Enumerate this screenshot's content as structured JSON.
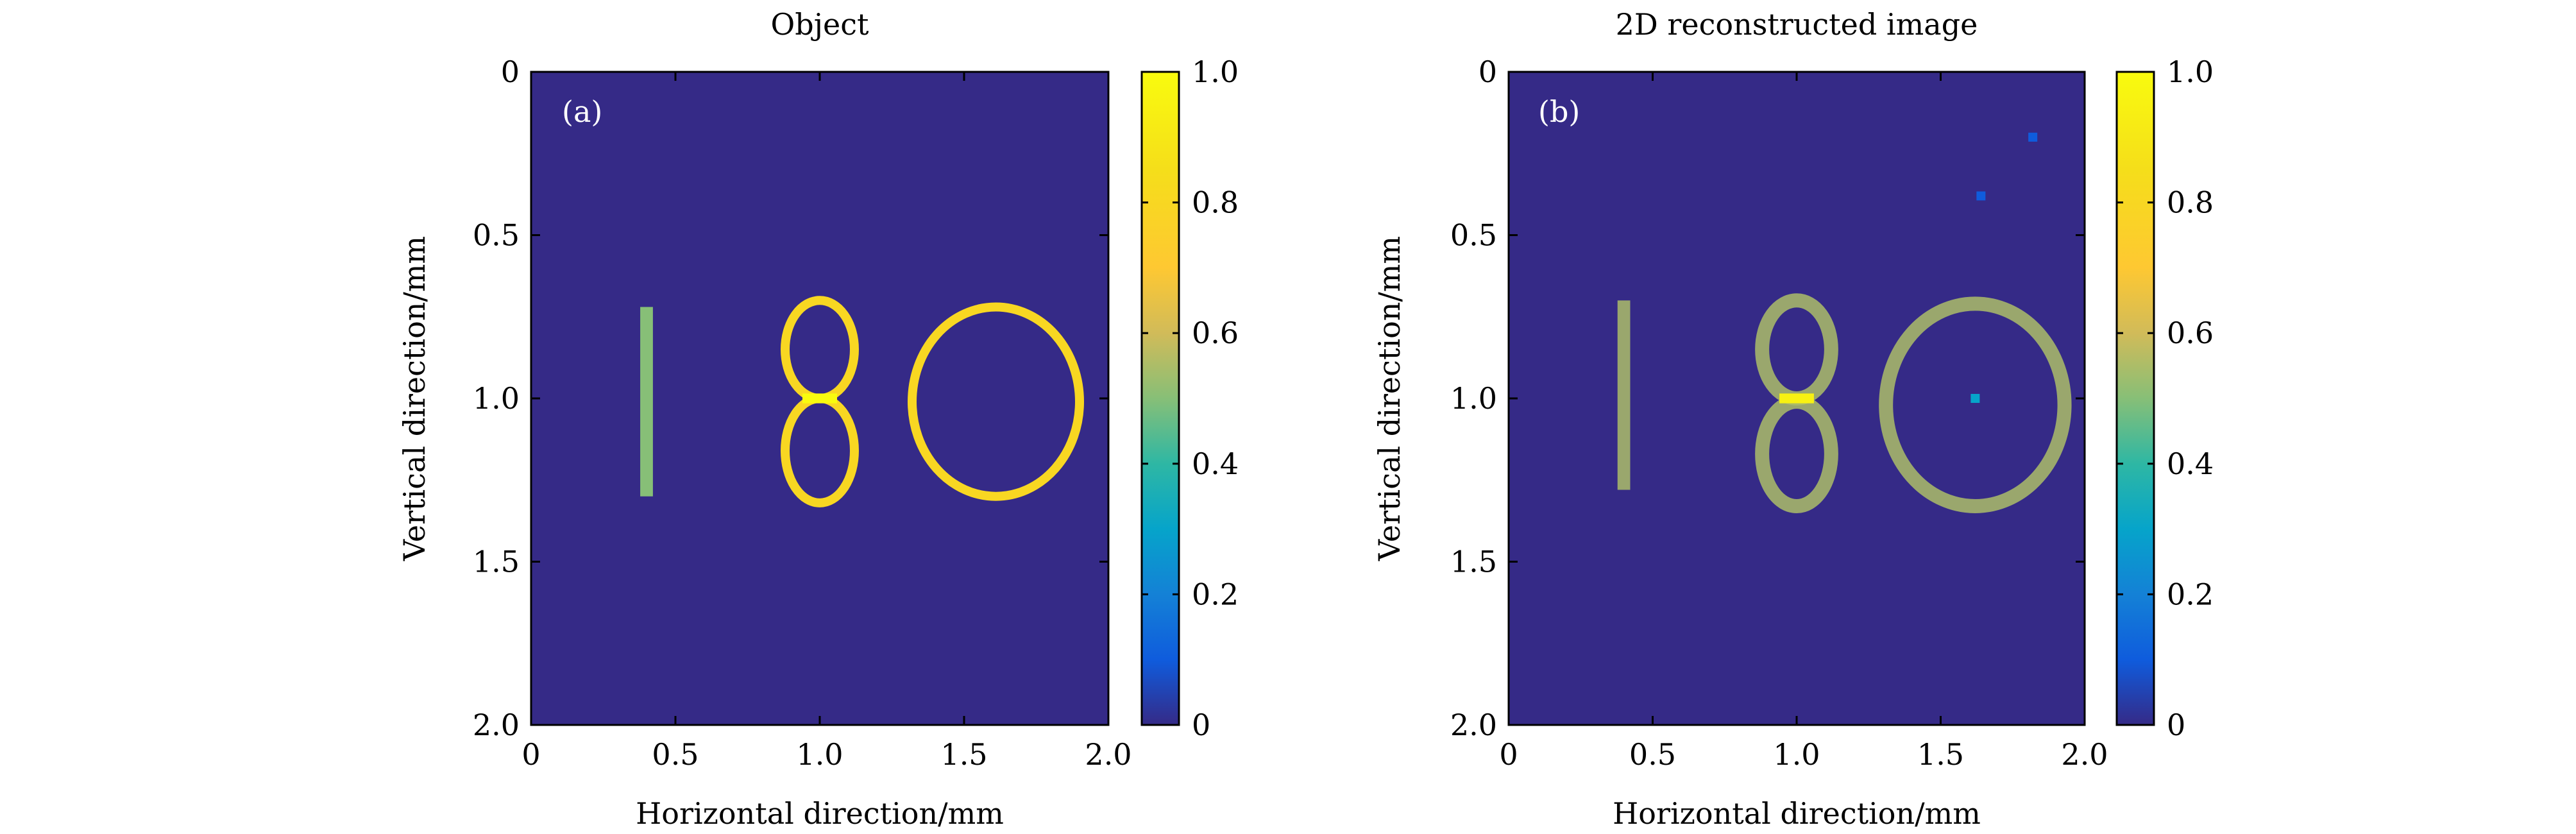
{
  "chart_data": [
    {
      "type": "heatmap",
      "panel_label": "(a)",
      "title": "Object",
      "xlabel": "Horizontal direction/mm",
      "ylabel": "Vertical direction/mm",
      "xlim": [
        0,
        2.0
      ],
      "ylim": [
        0,
        2.0
      ],
      "y_axis_inverted": true,
      "xticks": [
        0,
        0.5,
        1.0,
        1.5,
        2.0
      ],
      "xtick_labels": [
        "0",
        "0.5",
        "1.0",
        "1.5",
        "2.0"
      ],
      "yticks": [
        0,
        0.5,
        1.0,
        1.5,
        2.0
      ],
      "ytick_labels": [
        "0",
        "0.5",
        "1.0",
        "1.5",
        "2.0"
      ],
      "colorbar": {
        "range": [
          0,
          1.0
        ],
        "ticks": [
          0,
          0.2,
          0.4,
          0.6,
          0.8,
          1.0
        ],
        "tick_labels": [
          "0",
          "0.2",
          "0.4",
          "0.6",
          "0.8",
          "1.0"
        ],
        "colormap": "parula"
      },
      "background_value": 0,
      "shapes": [
        {
          "shape": "bar",
          "label": "1",
          "x": 0.4,
          "y_start": 0.72,
          "y_end": 1.3,
          "value": 0.5
        },
        {
          "shape": "loop",
          "label": "8-top",
          "cx": 1.0,
          "cy": 0.85,
          "rx": 0.12,
          "ry": 0.15,
          "value": 0.8
        },
        {
          "shape": "loop",
          "label": "8-bottom",
          "cx": 1.0,
          "cy": 1.16,
          "rx": 0.12,
          "ry": 0.16,
          "value": 0.8
        },
        {
          "shape": "bar",
          "label": "8-waist",
          "x": 1.0,
          "y_start": 1.0,
          "y_end": 1.0,
          "value": 1.0
        },
        {
          "shape": "loop",
          "label": "0",
          "cx": 1.61,
          "cy": 1.01,
          "rx": 0.29,
          "ry": 0.29,
          "value": 0.8
        }
      ]
    },
    {
      "type": "heatmap",
      "panel_label": "(b)",
      "title": "2D reconstructed image",
      "xlabel": "Horizontal direction/mm",
      "ylabel": "Vertical direction/mm",
      "xlim": [
        0,
        2.0
      ],
      "ylim": [
        0,
        2.0
      ],
      "y_axis_inverted": true,
      "xticks": [
        0,
        0.5,
        1.0,
        1.5,
        2.0
      ],
      "xtick_labels": [
        "0",
        "0.5",
        "1.0",
        "1.5",
        "2.0"
      ],
      "yticks": [
        0,
        0.5,
        1.0,
        1.5,
        2.0
      ],
      "ytick_labels": [
        "0",
        "0.5",
        "1.0",
        "1.5",
        "2.0"
      ],
      "colorbar": {
        "range": [
          0,
          1.0
        ],
        "ticks": [
          0,
          0.2,
          0.4,
          0.6,
          0.8,
          1.0
        ],
        "tick_labels": [
          "0",
          "0.2",
          "0.4",
          "0.6",
          "0.8",
          "1.0"
        ],
        "colormap": "parula"
      },
      "background_value": 0,
      "shapes": [
        {
          "shape": "bar",
          "label": "1",
          "x": 0.4,
          "y_start": 0.7,
          "y_end": 1.28,
          "value": 0.55
        },
        {
          "shape": "loop",
          "label": "8-top",
          "cx": 1.0,
          "cy": 0.85,
          "rx": 0.12,
          "ry": 0.15,
          "value": 0.55
        },
        {
          "shape": "loop",
          "label": "8-bottom",
          "cx": 1.0,
          "cy": 1.17,
          "rx": 0.12,
          "ry": 0.16,
          "value": 0.55
        },
        {
          "shape": "bar",
          "label": "8-waist",
          "x": 1.0,
          "y_start": 1.0,
          "y_end": 1.0,
          "value": 0.95
        },
        {
          "shape": "loop",
          "label": "0",
          "cx": 1.62,
          "cy": 1.02,
          "rx": 0.31,
          "ry": 0.31,
          "value": 0.55
        },
        {
          "shape": "dot",
          "x": 1.62,
          "y": 1.0,
          "value": 0.3
        },
        {
          "shape": "dot",
          "x": 1.82,
          "y": 0.2,
          "value": 0.1
        },
        {
          "shape": "dot",
          "x": 1.64,
          "y": 0.38,
          "value": 0.1
        }
      ]
    }
  ]
}
